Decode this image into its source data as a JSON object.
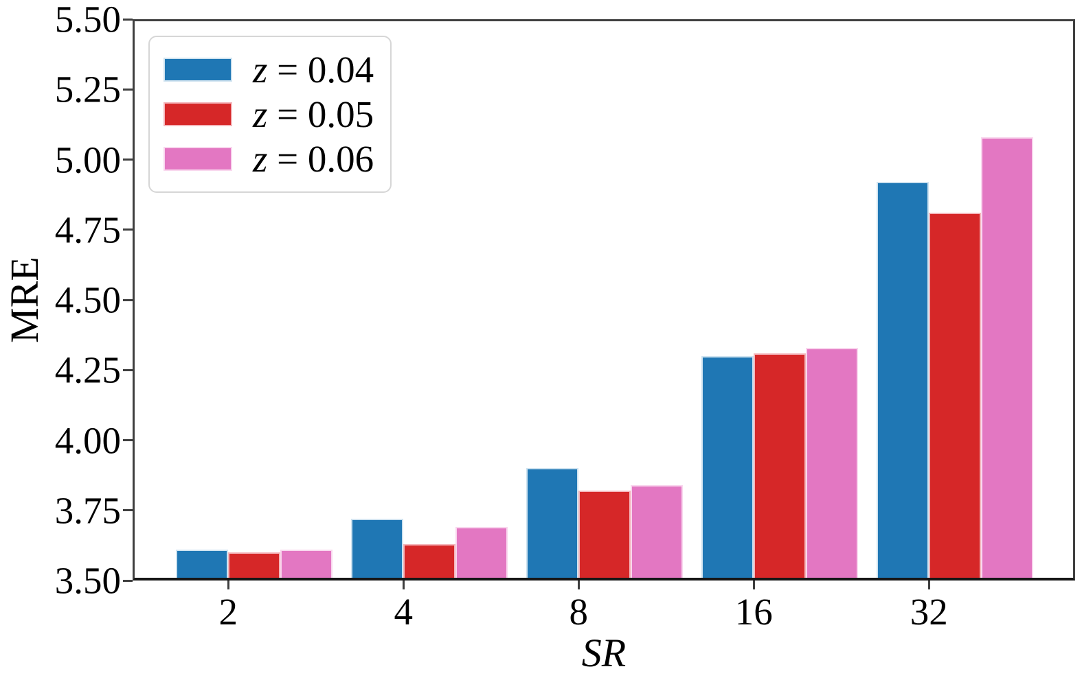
{
  "chart_data": {
    "type": "bar",
    "title": "",
    "xlabel": "SR",
    "ylabel": "MRE",
    "categories": [
      "2",
      "4",
      "8",
      "16",
      "32"
    ],
    "series": [
      {
        "name": "z = 0.04",
        "label_var": "z",
        "label_rest": " = 0.04",
        "color": "#1f77b4",
        "edge_color": "#cfe3f0",
        "values": [
          3.61,
          3.72,
          3.9,
          4.3,
          4.92
        ]
      },
      {
        "name": "z = 0.05",
        "label_var": "z",
        "label_rest": " = 0.05",
        "color": "#d62728",
        "edge_color": "#f4b6bb",
        "values": [
          3.6,
          3.63,
          3.82,
          4.31,
          4.81
        ]
      },
      {
        "name": "z = 0.06",
        "label_var": "z",
        "label_rest": " = 0.06",
        "color": "#e377c2",
        "edge_color": "#f9d7ee",
        "values": [
          3.61,
          3.69,
          3.84,
          4.33,
          5.08
        ]
      }
    ],
    "ylim": [
      3.5,
      5.5
    ],
    "ytick_labels": [
      "3.50",
      "3.75",
      "4.00",
      "4.25",
      "4.50",
      "4.75",
      "5.00",
      "5.25",
      "5.50"
    ],
    "grid": false,
    "legend_position": "upper left"
  },
  "colors": {
    "background": "#ffffff",
    "spine": "#3f3f3f",
    "text": "#000000",
    "legend_border": "#d6d6d6"
  }
}
